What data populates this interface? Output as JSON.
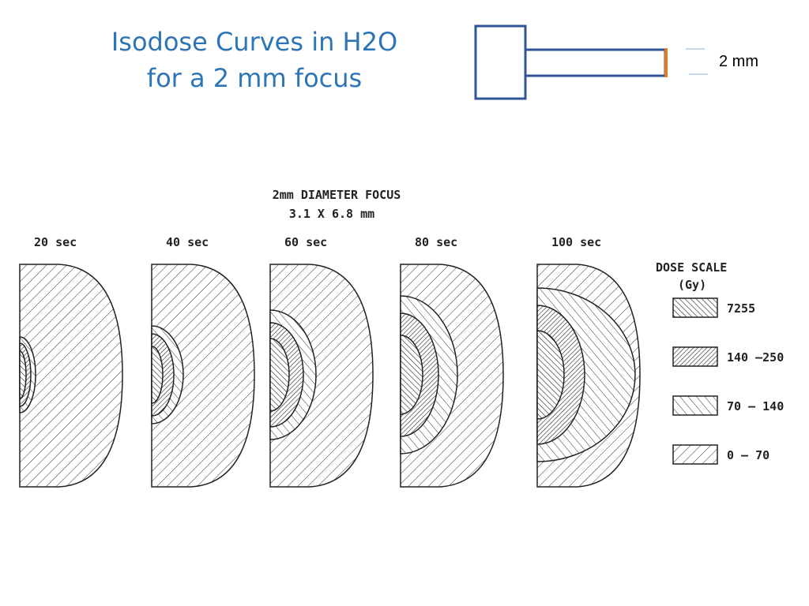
{
  "header": {
    "title_lines": [
      "Isodose Curves in H2O",
      "for a 2 mm focus"
    ]
  },
  "probe": {
    "label": "2 mm"
  },
  "figure": {
    "title": "2mm DIAMETER FOCUS",
    "subtitle": "3.1 X 6.8 mm",
    "panels": [
      "20 sec",
      "40 sec",
      "60 sec",
      "80 sec",
      "100 sec"
    ]
  },
  "legend": {
    "title": "DOSE SCALE",
    "unit": "(Gy)",
    "items": [
      "7255",
      "140 –250",
      "70 – 140",
      "0 – 70"
    ]
  }
}
